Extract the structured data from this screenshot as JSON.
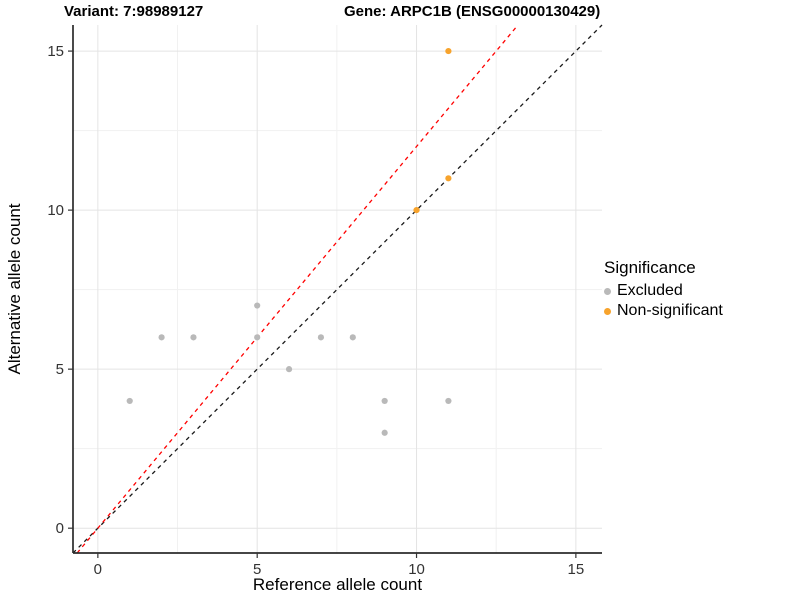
{
  "titles": {
    "variant": "Variant: 7:98989127",
    "gene": "Gene: ARPC1B (ENSG00000130429)"
  },
  "chart_data": {
    "type": "scatter",
    "xlabel": "Reference allele count",
    "ylabel": "Alternative allele count",
    "xlim": [
      -0.78,
      15.82
    ],
    "ylim": [
      -0.78,
      15.82
    ],
    "x_ticks": [
      0,
      5,
      10,
      15
    ],
    "y_ticks": [
      0,
      5,
      10,
      15
    ],
    "x_minor_ticks": [
      2.5,
      7.5,
      12.5
    ],
    "y_minor_ticks": [
      2.5,
      7.5,
      12.5
    ],
    "grid": true,
    "series": [
      {
        "name": "Excluded",
        "color": "#b9b9b9",
        "points": [
          [
            1,
            4
          ],
          [
            2,
            6
          ],
          [
            3,
            6
          ],
          [
            5,
            6
          ],
          [
            5,
            7
          ],
          [
            6,
            5
          ],
          [
            7,
            6
          ],
          [
            8,
            6
          ],
          [
            9,
            3
          ],
          [
            9,
            4
          ],
          [
            11,
            4
          ]
        ]
      },
      {
        "name": "Non-significant",
        "color": "#F7A32C",
        "points": [
          [
            10,
            10
          ],
          [
            11,
            11
          ],
          [
            11,
            15
          ]
        ]
      }
    ],
    "lines": [
      {
        "name": "identity-line",
        "color": "#1a1a1a",
        "dashed": true,
        "slope": 1.0,
        "intercept": 0
      },
      {
        "name": "fit-line",
        "color": "#ff0000",
        "dashed": true,
        "slope": 1.2,
        "intercept": 0
      }
    ],
    "legend": {
      "title": "Significance",
      "position": "right",
      "items": [
        {
          "label": "Excluded",
          "color": "#b9b9b9"
        },
        {
          "label": "Non-significant",
          "color": "#F7A32C"
        }
      ]
    },
    "colors": {
      "grid_major": "#e4e4e4",
      "grid_minor": "#f1f1f1",
      "axis_line": "#2b2b2b",
      "tick_label": "#333333"
    }
  }
}
